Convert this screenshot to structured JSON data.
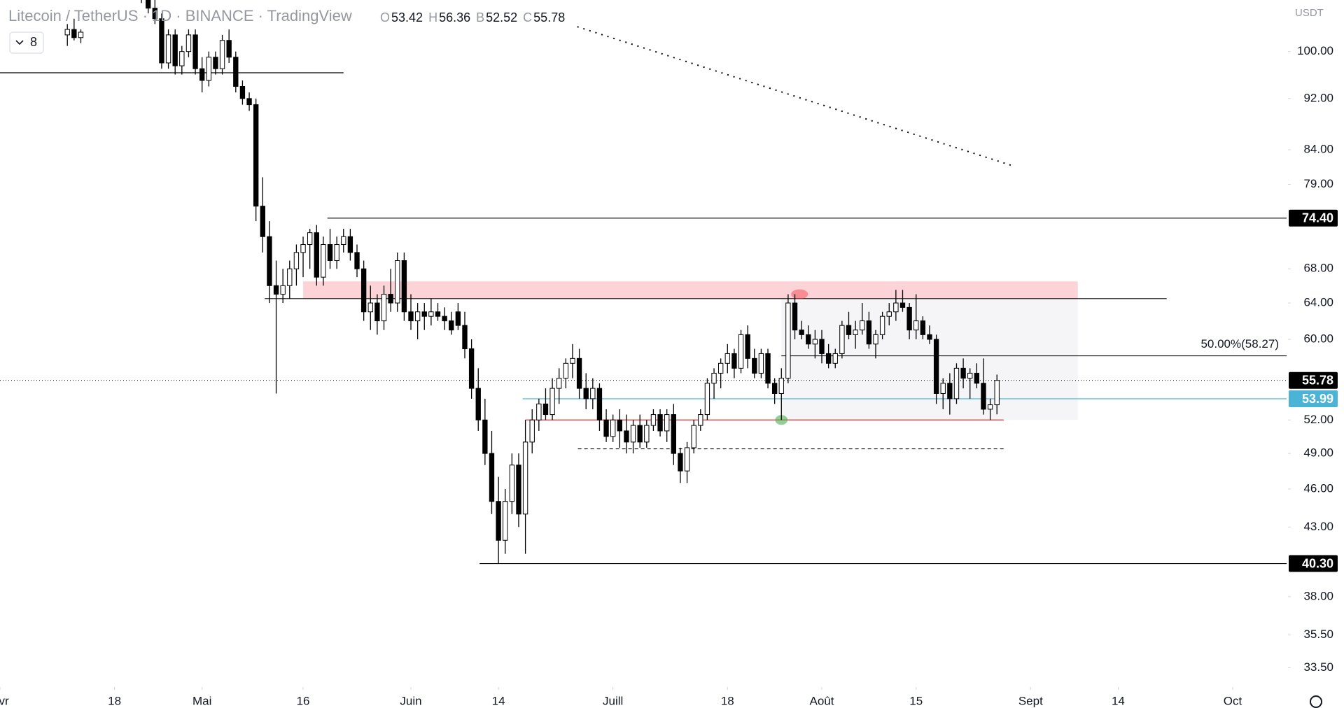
{
  "header": {
    "title": "Litecoin / TetherUS · 1D · BINANCE · TradingView",
    "ohlc_legend": [
      {
        "key": "O",
        "value": "53.42"
      },
      {
        "key": "H",
        "value": "56.36"
      },
      {
        "key": "B",
        "value": "52.52"
      },
      {
        "key": "C",
        "value": "55.78"
      }
    ],
    "indicator_toggle": "8"
  },
  "chart_data": {
    "type": "candlestick",
    "y_unit": "USDT",
    "log_scale": true,
    "grid": false,
    "colors": {
      "up": "#ffffff",
      "down": "#000000",
      "wick": "#000000"
    },
    "ylim": [
      32.37,
      109.58
    ],
    "yticks": [
      {
        "value": 100,
        "label": "100.00"
      },
      {
        "value": 92,
        "label": "92.00"
      },
      {
        "value": 84,
        "label": "84.00"
      },
      {
        "value": 79,
        "label": "79.00"
      },
      {
        "value": 68,
        "label": "68.00"
      },
      {
        "value": 64,
        "label": "64.00"
      },
      {
        "value": 60,
        "label": "60.00"
      },
      {
        "value": 52,
        "label": "52.00"
      },
      {
        "value": 49,
        "label": "49.00"
      },
      {
        "value": 46,
        "label": "46.00"
      },
      {
        "value": 43,
        "label": "43.00"
      },
      {
        "value": 38,
        "label": "38.00"
      },
      {
        "value": 35.5,
        "label": "35.50"
      },
      {
        "value": 33.5,
        "label": "33.50"
      }
    ],
    "xlim": [
      -10,
      181
    ],
    "xticks": [
      {
        "value": -10,
        "label": "Avr"
      },
      {
        "value": 7,
        "label": "18"
      },
      {
        "value": 20,
        "label": "Mai"
      },
      {
        "value": 35,
        "label": "16"
      },
      {
        "value": 51,
        "label": "Juin"
      },
      {
        "value": 64,
        "label": "14"
      },
      {
        "value": 81,
        "label": "Juill"
      },
      {
        "value": 98,
        "label": "18"
      },
      {
        "value": 112,
        "label": "Août"
      },
      {
        "value": 126,
        "label": "15"
      },
      {
        "value": 143,
        "label": "Sept"
      },
      {
        "value": 156,
        "label": "14"
      },
      {
        "value": 173,
        "label": "Oct"
      }
    ],
    "ohlc": [
      [
        103,
        105,
        101,
        104
      ],
      [
        104,
        106,
        102,
        102.5
      ],
      [
        102.5,
        104,
        101.5,
        103.5
      ],
      [
        112,
        116,
        110,
        114
      ],
      [
        114,
        118,
        112,
        116
      ],
      [
        116,
        119,
        113,
        115
      ],
      [
        115,
        117,
        111,
        112
      ],
      [
        112,
        115,
        110,
        113
      ],
      [
        113,
        116,
        111,
        111.5
      ],
      [
        111.5,
        114,
        110,
        113
      ],
      [
        113,
        115,
        111,
        112
      ],
      [
        112,
        114,
        109,
        110
      ],
      [
        110,
        112,
        107,
        108
      ],
      [
        108,
        110,
        105,
        106
      ],
      [
        106,
        107,
        97,
        98
      ],
      [
        98,
        104,
        97,
        103
      ],
      [
        103,
        104,
        96,
        97.5
      ],
      [
        97.5,
        101,
        96,
        100
      ],
      [
        100,
        104,
        99,
        103
      ],
      [
        103,
        104,
        96,
        97
      ],
      [
        97,
        99,
        93,
        95
      ],
      [
        95,
        100,
        94,
        99
      ],
      [
        99,
        100,
        96,
        97
      ],
      [
        97,
        103,
        96,
        102
      ],
      [
        102,
        104,
        98,
        99
      ],
      [
        99,
        100,
        93,
        94
      ],
      [
        94,
        95,
        91,
        92
      ],
      [
        92,
        93,
        90,
        91
      ],
      [
        91,
        92,
        74,
        76
      ],
      [
        76,
        80,
        70,
        72
      ],
      [
        72,
        74,
        64,
        66
      ],
      [
        66,
        69,
        54.5,
        65
      ],
      [
        65,
        68,
        64,
        66
      ],
      [
        66,
        69,
        64.5,
        68
      ],
      [
        68,
        71,
        66,
        70
      ],
      [
        70,
        72,
        67,
        71
      ],
      [
        71,
        73,
        68,
        72.5
      ],
      [
        72.5,
        73.5,
        66,
        67
      ],
      [
        67,
        72,
        66,
        71
      ],
      [
        71,
        73,
        68,
        69
      ],
      [
        69,
        72,
        68,
        71
      ],
      [
        71,
        73,
        70,
        72
      ],
      [
        72,
        73,
        69,
        70
      ],
      [
        70,
        71,
        67,
        68
      ],
      [
        68,
        69,
        62,
        63
      ],
      [
        63,
        66,
        61,
        64
      ],
      [
        64,
        65,
        60.5,
        62
      ],
      [
        62,
        66,
        61,
        65
      ],
      [
        65,
        68,
        63,
        64
      ],
      [
        64,
        70,
        63,
        69
      ],
      [
        69,
        70,
        62,
        63
      ],
      [
        63,
        65,
        61,
        62
      ],
      [
        62,
        64,
        60,
        63
      ],
      [
        63,
        64,
        61,
        62.5
      ],
      [
        62.5,
        64.5,
        61.5,
        63
      ],
      [
        63,
        64,
        62,
        62.5
      ],
      [
        62.5,
        63.5,
        61,
        62
      ],
      [
        62,
        63,
        60.5,
        61
      ],
      [
        63,
        64,
        61,
        61.5
      ],
      [
        61.5,
        63,
        58,
        59
      ],
      [
        59,
        60,
        54,
        55
      ],
      [
        55,
        57,
        51,
        52
      ],
      [
        52,
        54,
        48,
        49
      ],
      [
        49,
        51,
        44,
        45
      ],
      [
        45,
        47,
        40.3,
        42
      ],
      [
        42,
        46,
        41,
        45
      ],
      [
        45,
        49,
        44,
        48
      ],
      [
        48,
        49,
        43,
        44
      ],
      [
        44,
        52,
        41,
        50
      ],
      [
        50,
        53,
        49,
        52
      ],
      [
        52,
        54,
        51,
        53.5
      ],
      [
        53.5,
        55,
        52,
        52.5
      ],
      [
        52.5,
        56,
        52,
        55
      ],
      [
        55,
        57,
        53.5,
        56
      ],
      [
        56,
        58,
        55,
        57.5
      ],
      [
        57.5,
        59.5,
        56,
        58
      ],
      [
        58,
        59,
        54,
        55
      ],
      [
        55,
        56.5,
        53,
        54
      ],
      [
        54,
        56,
        53,
        55
      ],
      [
        55,
        55.5,
        51,
        52
      ],
      [
        52,
        53,
        50,
        50.5
      ],
      [
        50.5,
        52.5,
        50,
        52
      ],
      [
        52,
        53,
        49.5,
        51
      ],
      [
        51,
        52.5,
        49,
        50
      ],
      [
        50,
        52,
        49,
        51.5
      ],
      [
        51.5,
        52.5,
        49.5,
        50
      ],
      [
        50,
        52,
        49.5,
        51.5
      ],
      [
        51.5,
        53,
        51,
        52.5
      ],
      [
        52.5,
        53,
        50.5,
        51
      ],
      [
        51,
        53,
        50,
        52.5
      ],
      [
        52.5,
        53.5,
        48,
        49
      ],
      [
        49,
        49.5,
        46.5,
        47.5
      ],
      [
        47.5,
        50,
        46.5,
        49.5
      ],
      [
        49.5,
        52,
        49,
        51.5
      ],
      [
        51.5,
        53,
        51,
        52.5
      ],
      [
        52.5,
        56,
        52,
        55.5
      ],
      [
        55.5,
        57,
        54,
        56.5
      ],
      [
        56.5,
        58,
        55,
        57.5
      ],
      [
        57.5,
        59.5,
        56.5,
        58.5
      ],
      [
        58.5,
        59,
        56,
        57
      ],
      [
        57,
        61,
        56.5,
        60.5
      ],
      [
        60.5,
        61.5,
        57,
        58
      ],
      [
        58,
        59,
        56,
        56.5
      ],
      [
        56.5,
        59,
        56,
        58.5
      ],
      [
        58.5,
        59,
        55,
        55.5
      ],
      [
        55.5,
        56,
        53.5,
        54.5
      ],
      [
        54.5,
        57,
        52,
        56
      ],
      [
        56,
        65,
        55.5,
        64
      ],
      [
        64,
        65,
        60,
        61
      ],
      [
        61,
        62,
        60,
        60.5
      ],
      [
        60.5,
        61.5,
        59,
        59.5
      ],
      [
        59.5,
        61,
        58,
        60
      ],
      [
        60,
        61,
        57.5,
        58.5
      ],
      [
        58.5,
        59.5,
        57,
        57.5
      ],
      [
        57.5,
        59,
        57,
        58.5
      ],
      [
        58.5,
        62,
        58,
        61.5
      ],
      [
        61.5,
        63,
        60,
        60.5
      ],
      [
        60.5,
        62,
        59,
        61
      ],
      [
        61,
        64,
        60.5,
        62
      ],
      [
        62,
        63,
        59,
        59.5
      ],
      [
        59.5,
        61,
        58,
        60.5
      ],
      [
        60.5,
        63,
        60,
        62.5
      ],
      [
        62.5,
        64,
        61.5,
        63
      ],
      [
        63,
        65.5,
        62,
        64
      ],
      [
        64,
        65.5,
        63,
        63.5
      ],
      [
        63.5,
        64,
        60,
        61
      ],
      [
        61,
        65,
        60,
        62
      ],
      [
        62,
        62.5,
        60,
        60.5
      ],
      [
        60.5,
        61.5,
        59.5,
        60
      ],
      [
        60,
        60.5,
        53.5,
        54.5
      ],
      [
        54.5,
        56,
        53,
        55.5
      ],
      [
        55.5,
        56.5,
        52.5,
        54
      ],
      [
        54,
        57.5,
        53.5,
        57
      ],
      [
        57,
        58,
        55,
        56
      ],
      [
        56,
        57,
        54,
        56.5
      ],
      [
        56.5,
        57.5,
        55,
        55.5
      ],
      [
        55.5,
        58,
        52.5,
        53
      ],
      [
        53,
        54,
        52,
        53.42
      ],
      [
        53.42,
        56.36,
        52.52,
        55.78
      ]
    ],
    "price_labels": [
      {
        "value": 74.4,
        "label": "74.40",
        "color": "#000000",
        "text_color": "#ffffff"
      },
      {
        "value": 55.78,
        "label": "55.78",
        "color": "#000000",
        "text_color": "#ffffff"
      },
      {
        "value": 53.99,
        "label": "53.99",
        "color": "#4bb3d6",
        "text_color": "#ffffff"
      },
      {
        "value": 40.3,
        "label": "40.30",
        "color": "#000000",
        "text_color": "#ffffff"
      }
    ],
    "fib_level": {
      "value": 58.27,
      "label": "50.00%(58.27)"
    },
    "zones": [
      {
        "from": 64.5,
        "to": 66.5,
        "color": "rgba(242,54,69,0.22)"
      },
      {
        "from": 52,
        "to": 64.5,
        "color": "rgba(190,194,204,0.16)"
      }
    ],
    "hlines": [
      {
        "value": 96.3,
        "color": "#000000"
      },
      {
        "value": 64.5,
        "color": "#000000"
      },
      {
        "value": 52,
        "color": "#e03030"
      },
      {
        "value": 49.4,
        "color": "#000000"
      }
    ],
    "trendline": [
      104.5,
      81.6
    ]
  }
}
